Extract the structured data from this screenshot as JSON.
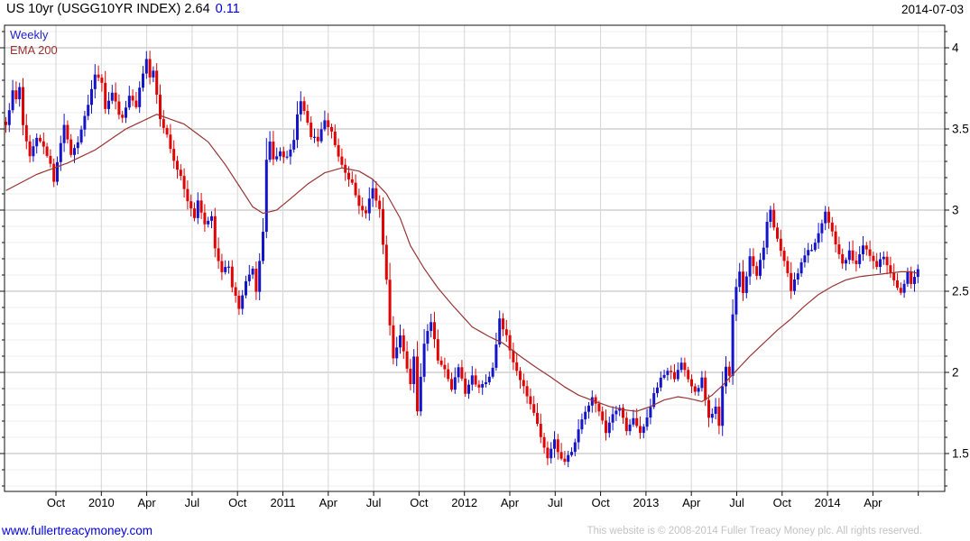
{
  "header": {
    "title": "US 10yr (USGG10YR INDEX) 2.64",
    "change": "0.11",
    "date": "2014-07-03"
  },
  "legend": {
    "weekly": "Weekly",
    "ema": "EMA 200"
  },
  "footer": {
    "website": "www.fullertreacymoney.com",
    "copyright": "This website is © 2008-2014 Fuller Treacy Money plc. All rights reserved."
  },
  "colors": {
    "up": "#1414c8",
    "down": "#e00505",
    "ema": "#993333",
    "change_text": "#0000e0",
    "link": "#0000dd",
    "copyright_text": "#c3c3c3",
    "grid_minor": "#ededed",
    "grid_major": "#b9b9b9",
    "grid_vertical": "#d6d6d6",
    "axis": "#111111"
  },
  "chart_data": {
    "type": "candlestick",
    "title": "US 10yr (USGG10YR INDEX)",
    "timeframe": "Weekly",
    "overlay": "EMA 200",
    "last_close": 2.64,
    "change": 0.11,
    "as_of_date": "2014-07-03",
    "ylim": [
      1.27,
      4.14
    ],
    "y_minor_step": 0.1,
    "y_tick_values": [
      4,
      3.5,
      3,
      2.5,
      2,
      1.5
    ],
    "y_tick_labels": [
      "4",
      "3.5",
      "3",
      "2.5",
      "2",
      "1.5"
    ],
    "y_axis_side": "right",
    "legend_position": "top-left",
    "x_tick_labels": [
      "Oct",
      "2010",
      "Apr",
      "Jul",
      "Oct",
      "2011",
      "Apr",
      "Jul",
      "Oct",
      "2012",
      "Apr",
      "Jul",
      "Oct",
      "2013",
      "Apr",
      "Jul",
      "Oct",
      "2014",
      "Apr"
    ],
    "x_axis": {
      "first_x": 62,
      "step_x": 50.3,
      "extra_unlabeled_ticks": 1
    },
    "weeks": 267,
    "seed": 11,
    "close_anchors": [
      [
        0,
        3.52
      ],
      [
        1,
        3.62
      ],
      [
        2,
        3.73
      ],
      [
        3,
        3.68
      ],
      [
        4,
        3.75
      ],
      [
        5,
        3.52
      ],
      [
        7,
        3.33
      ],
      [
        9,
        3.45
      ],
      [
        11,
        3.4
      ],
      [
        13,
        3.28
      ],
      [
        14,
        3.18
      ],
      [
        15,
        3.3
      ],
      [
        17,
        3.52
      ],
      [
        19,
        3.35
      ],
      [
        21,
        3.42
      ],
      [
        24,
        3.66
      ],
      [
        26,
        3.84
      ],
      [
        28,
        3.78
      ],
      [
        29,
        3.62
      ],
      [
        31,
        3.72
      ],
      [
        33,
        3.6
      ],
      [
        34,
        3.56
      ],
      [
        36,
        3.7
      ],
      [
        38,
        3.64
      ],
      [
        40,
        3.85
      ],
      [
        41,
        3.94
      ],
      [
        42,
        3.82
      ],
      [
        43,
        3.86
      ],
      [
        44,
        3.7
      ],
      [
        45,
        3.56
      ],
      [
        47,
        3.46
      ],
      [
        49,
        3.3
      ],
      [
        51,
        3.22
      ],
      [
        53,
        3.05
      ],
      [
        55,
        2.96
      ],
      [
        56,
        3.06
      ],
      [
        58,
        2.92
      ],
      [
        60,
        2.97
      ],
      [
        61,
        2.76
      ],
      [
        63,
        2.62
      ],
      [
        65,
        2.66
      ],
      [
        66,
        2.52
      ],
      [
        68,
        2.4
      ],
      [
        70,
        2.56
      ],
      [
        72,
        2.63
      ],
      [
        73,
        2.5
      ],
      [
        75,
        2.87
      ],
      [
        76,
        3.3
      ],
      [
        77,
        3.42
      ],
      [
        78,
        3.32
      ],
      [
        80,
        3.35
      ],
      [
        82,
        3.32
      ],
      [
        84,
        3.42
      ],
      [
        85,
        3.58
      ],
      [
        86,
        3.68
      ],
      [
        87,
        3.6
      ],
      [
        89,
        3.46
      ],
      [
        91,
        3.42
      ],
      [
        93,
        3.56
      ],
      [
        95,
        3.48
      ],
      [
        97,
        3.32
      ],
      [
        99,
        3.22
      ],
      [
        101,
        3.16
      ],
      [
        103,
        3.02
      ],
      [
        105,
        2.98
      ],
      [
        107,
        3.14
      ],
      [
        109,
        3.0
      ],
      [
        111,
        2.58
      ],
      [
        112,
        2.28
      ],
      [
        113,
        2.08
      ],
      [
        115,
        2.22
      ],
      [
        117,
        2.02
      ],
      [
        118,
        1.94
      ],
      [
        119,
        2.1
      ],
      [
        120,
        1.75
      ],
      [
        122,
        2.18
      ],
      [
        124,
        2.32
      ],
      [
        126,
        2.08
      ],
      [
        128,
        2.02
      ],
      [
        130,
        1.9
      ],
      [
        132,
        2.04
      ],
      [
        134,
        1.88
      ],
      [
        136,
        1.97
      ],
      [
        138,
        1.9
      ],
      [
        140,
        1.95
      ],
      [
        142,
        2.02
      ],
      [
        144,
        2.32
      ],
      [
        146,
        2.22
      ],
      [
        148,
        2.06
      ],
      [
        150,
        1.95
      ],
      [
        152,
        1.86
      ],
      [
        154,
        1.76
      ],
      [
        156,
        1.6
      ],
      [
        158,
        1.47
      ],
      [
        160,
        1.58
      ],
      [
        161,
        1.52
      ],
      [
        163,
        1.44
      ],
      [
        165,
        1.52
      ],
      [
        167,
        1.64
      ],
      [
        169,
        1.76
      ],
      [
        171,
        1.84
      ],
      [
        173,
        1.76
      ],
      [
        175,
        1.63
      ],
      [
        177,
        1.73
      ],
      [
        179,
        1.79
      ],
      [
        181,
        1.64
      ],
      [
        183,
        1.71
      ],
      [
        185,
        1.62
      ],
      [
        187,
        1.73
      ],
      [
        189,
        1.86
      ],
      [
        191,
        1.96
      ],
      [
        193,
        2.02
      ],
      [
        195,
        1.96
      ],
      [
        197,
        2.05
      ],
      [
        199,
        1.96
      ],
      [
        201,
        1.87
      ],
      [
        203,
        1.96
      ],
      [
        205,
        1.72
      ],
      [
        207,
        1.78
      ],
      [
        208,
        1.66
      ],
      [
        209,
        1.92
      ],
      [
        210,
        2.04
      ],
      [
        211,
        1.97
      ],
      [
        212,
        2.35
      ],
      [
        213,
        2.52
      ],
      [
        214,
        2.62
      ],
      [
        215,
        2.5
      ],
      [
        216,
        2.6
      ],
      [
        217,
        2.72
      ],
      [
        219,
        2.6
      ],
      [
        221,
        2.78
      ],
      [
        222,
        2.92
      ],
      [
        223,
        2.99
      ],
      [
        224,
        2.9
      ],
      [
        226,
        2.74
      ],
      [
        228,
        2.62
      ],
      [
        229,
        2.51
      ],
      [
        231,
        2.62
      ],
      [
        233,
        2.73
      ],
      [
        235,
        2.76
      ],
      [
        237,
        2.86
      ],
      [
        239,
        2.99
      ],
      [
        241,
        2.88
      ],
      [
        243,
        2.72
      ],
      [
        244,
        2.67
      ],
      [
        246,
        2.74
      ],
      [
        248,
        2.66
      ],
      [
        250,
        2.78
      ],
      [
        252,
        2.73
      ],
      [
        254,
        2.66
      ],
      [
        256,
        2.72
      ],
      [
        258,
        2.62
      ],
      [
        260,
        2.53
      ],
      [
        261,
        2.49
      ],
      [
        262,
        2.55
      ],
      [
        263,
        2.63
      ],
      [
        264,
        2.54
      ],
      [
        265,
        2.58
      ],
      [
        266,
        2.64
      ]
    ],
    "ema_anchors": [
      [
        0,
        3.12
      ],
      [
        9,
        3.22
      ],
      [
        18,
        3.29
      ],
      [
        26,
        3.37
      ],
      [
        35,
        3.5
      ],
      [
        44,
        3.59
      ],
      [
        52,
        3.53
      ],
      [
        59,
        3.42
      ],
      [
        64,
        3.28
      ],
      [
        68,
        3.15
      ],
      [
        72,
        3.02
      ],
      [
        75,
        2.98
      ],
      [
        79,
        3.0
      ],
      [
        83,
        3.07
      ],
      [
        88,
        3.16
      ],
      [
        93,
        3.23
      ],
      [
        98,
        3.26
      ],
      [
        103,
        3.24
      ],
      [
        107,
        3.19
      ],
      [
        111,
        3.1
      ],
      [
        115,
        2.95
      ],
      [
        118,
        2.78
      ],
      [
        122,
        2.64
      ],
      [
        126,
        2.52
      ],
      [
        130,
        2.42
      ],
      [
        136,
        2.28
      ],
      [
        141,
        2.22
      ],
      [
        145,
        2.18
      ],
      [
        150,
        2.1
      ],
      [
        154,
        2.04
      ],
      [
        159,
        1.97
      ],
      [
        163,
        1.91
      ],
      [
        167,
        1.86
      ],
      [
        172,
        1.82
      ],
      [
        176,
        1.79
      ],
      [
        180,
        1.77
      ],
      [
        184,
        1.76
      ],
      [
        188,
        1.79
      ],
      [
        192,
        1.83
      ],
      [
        196,
        1.85
      ],
      [
        199,
        1.84
      ],
      [
        203,
        1.82
      ],
      [
        206,
        1.86
      ],
      [
        209,
        1.92
      ],
      [
        213,
        2.01
      ],
      [
        217,
        2.1
      ],
      [
        221,
        2.18
      ],
      [
        225,
        2.26
      ],
      [
        229,
        2.33
      ],
      [
        233,
        2.41
      ],
      [
        237,
        2.48
      ],
      [
        241,
        2.53
      ],
      [
        245,
        2.57
      ],
      [
        249,
        2.59
      ],
      [
        253,
        2.6
      ],
      [
        257,
        2.61
      ],
      [
        261,
        2.62
      ],
      [
        264,
        2.62
      ],
      [
        266,
        2.61
      ]
    ]
  }
}
